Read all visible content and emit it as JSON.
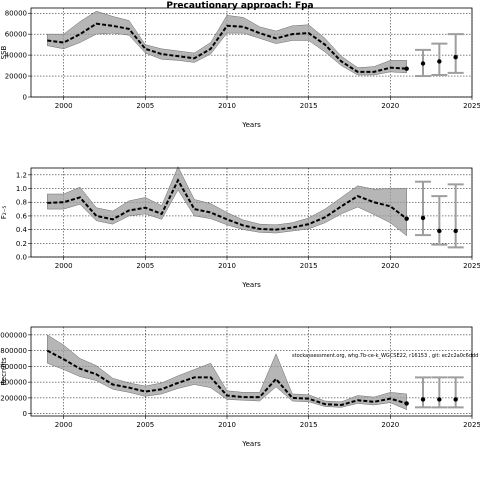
{
  "title": "Precautionary approach: Fpa",
  "annotation": "stockassessment.org, whg.7b-ce-k_WGCSE22, r16153 , git: ec2c2a0c6ddd",
  "chart_data": [
    {
      "type": "line",
      "ylabel": "SSB",
      "xlabel": "Years",
      "xlim": [
        1998,
        2025
      ],
      "ylim": [
        0,
        85000
      ],
      "grid": true,
      "xticks": [
        2000,
        2005,
        2010,
        2015,
        2020,
        2025
      ],
      "yticks": [
        0,
        20000,
        40000,
        60000,
        80000
      ],
      "ytick_labels": [
        "0",
        "20000",
        "40000",
        "60000",
        "80000"
      ],
      "series": [
        {
          "role": "estimate",
          "x": [
            1999,
            2000,
            2001,
            2002,
            2003,
            2004,
            2005,
            2006,
            2007,
            2008,
            2009,
            2010,
            2011,
            2012,
            2013,
            2014,
            2015,
            2016,
            2017,
            2018,
            2019,
            2020,
            2021
          ],
          "y": [
            54000,
            52000,
            60000,
            70000,
            68000,
            65000,
            46000,
            41000,
            39000,
            37000,
            46000,
            68000,
            67000,
            61000,
            56000,
            60000,
            61000,
            50000,
            34000,
            24000,
            24000,
            28000,
            27000
          ],
          "lower": [
            49000,
            46000,
            52000,
            60000,
            61000,
            59000,
            42000,
            36000,
            35000,
            33000,
            41000,
            61000,
            61000,
            56000,
            51000,
            54000,
            54000,
            43000,
            30000,
            21000,
            21000,
            24000,
            23000
          ],
          "upper": [
            60000,
            60000,
            72000,
            82000,
            77000,
            73000,
            50000,
            46000,
            44000,
            42000,
            52000,
            78000,
            76000,
            67000,
            63000,
            68000,
            69000,
            56000,
            39000,
            28000,
            29000,
            35000,
            35000
          ]
        },
        {
          "role": "projection",
          "x": [
            2022,
            2023,
            2024
          ],
          "y": [
            32000,
            34000,
            38000
          ],
          "lower": [
            20000,
            21000,
            23000
          ],
          "upper": [
            45000,
            51000,
            60000
          ]
        }
      ]
    },
    {
      "type": "line",
      "ylabel": "F₂₋₅",
      "xlabel": "Years",
      "xlim": [
        1998,
        2025
      ],
      "ylim": [
        0,
        1.3
      ],
      "grid": true,
      "xticks": [
        2000,
        2005,
        2010,
        2015,
        2020,
        2025
      ],
      "yticks": [
        0,
        0.2,
        0.4,
        0.6,
        0.8,
        1.0,
        1.2
      ],
      "ytick_labels": [
        "0.0",
        "0.2",
        "0.4",
        "0.6",
        "0.8",
        "1.0",
        "1.2"
      ],
      "series": [
        {
          "role": "estimate",
          "x": [
            1999,
            2000,
            2001,
            2002,
            2003,
            2004,
            2005,
            2006,
            2007,
            2008,
            2009,
            2010,
            2011,
            2012,
            2013,
            2014,
            2015,
            2016,
            2017,
            2018,
            2019,
            2020,
            2021
          ],
          "y": [
            0.79,
            0.8,
            0.87,
            0.6,
            0.55,
            0.68,
            0.72,
            0.63,
            1.12,
            0.7,
            0.65,
            0.55,
            0.46,
            0.41,
            0.4,
            0.43,
            0.48,
            0.58,
            0.74,
            0.89,
            0.8,
            0.74,
            0.56
          ],
          "lower": [
            0.7,
            0.7,
            0.77,
            0.53,
            0.48,
            0.6,
            0.63,
            0.55,
            0.98,
            0.6,
            0.56,
            0.47,
            0.4,
            0.36,
            0.35,
            0.38,
            0.41,
            0.5,
            0.63,
            0.73,
            0.62,
            0.5,
            0.31
          ],
          "upper": [
            0.92,
            0.92,
            1.02,
            0.72,
            0.67,
            0.82,
            0.87,
            0.75,
            1.32,
            0.84,
            0.78,
            0.65,
            0.54,
            0.48,
            0.47,
            0.5,
            0.57,
            0.7,
            0.87,
            1.04,
            0.99,
            1.0,
            1.0
          ]
        },
        {
          "role": "projection",
          "x": [
            2022,
            2023,
            2024
          ],
          "y": [
            0.57,
            0.38,
            0.38
          ],
          "lower": [
            0.32,
            0.18,
            0.14
          ],
          "upper": [
            1.1,
            0.89,
            1.06
          ]
        }
      ]
    },
    {
      "type": "line",
      "ylabel": "Recruits",
      "xlabel": "Years",
      "xlim": [
        1998,
        2025
      ],
      "ylim": [
        -30000,
        1100000
      ],
      "grid": true,
      "xticks": [
        2000,
        2005,
        2010,
        2015,
        2020,
        2025
      ],
      "yticks": [
        0,
        200000,
        400000,
        600000,
        800000,
        1000000
      ],
      "ytick_labels": [
        "0",
        "200000",
        "400000",
        "600000",
        "800000",
        "1000000"
      ],
      "series": [
        {
          "role": "estimate",
          "x": [
            1999,
            2000,
            2001,
            2002,
            2003,
            2004,
            2005,
            2006,
            2007,
            2008,
            2009,
            2010,
            2011,
            2012,
            2013,
            2014,
            2015,
            2016,
            2017,
            2018,
            2019,
            2020,
            2021
          ],
          "y": [
            800000,
            690000,
            570000,
            500000,
            370000,
            330000,
            280000,
            310000,
            390000,
            460000,
            460000,
            230000,
            210000,
            210000,
            440000,
            200000,
            190000,
            120000,
            110000,
            170000,
            150000,
            190000,
            130000
          ],
          "lower": [
            640000,
            560000,
            470000,
            420000,
            310000,
            270000,
            220000,
            250000,
            320000,
            370000,
            330000,
            180000,
            170000,
            160000,
            340000,
            160000,
            150000,
            90000,
            80000,
            130000,
            110000,
            140000,
            50000
          ],
          "upper": [
            1000000,
            870000,
            700000,
            610000,
            450000,
            390000,
            350000,
            390000,
            480000,
            560000,
            640000,
            290000,
            270000,
            270000,
            760000,
            250000,
            240000,
            160000,
            150000,
            230000,
            210000,
            270000,
            250000
          ]
        },
        {
          "role": "projection",
          "x": [
            2022,
            2023,
            2024
          ],
          "y": [
            180000,
            180000,
            180000
          ],
          "lower": [
            80000,
            80000,
            80000
          ],
          "upper": [
            460000,
            460000,
            460000
          ]
        }
      ]
    }
  ]
}
